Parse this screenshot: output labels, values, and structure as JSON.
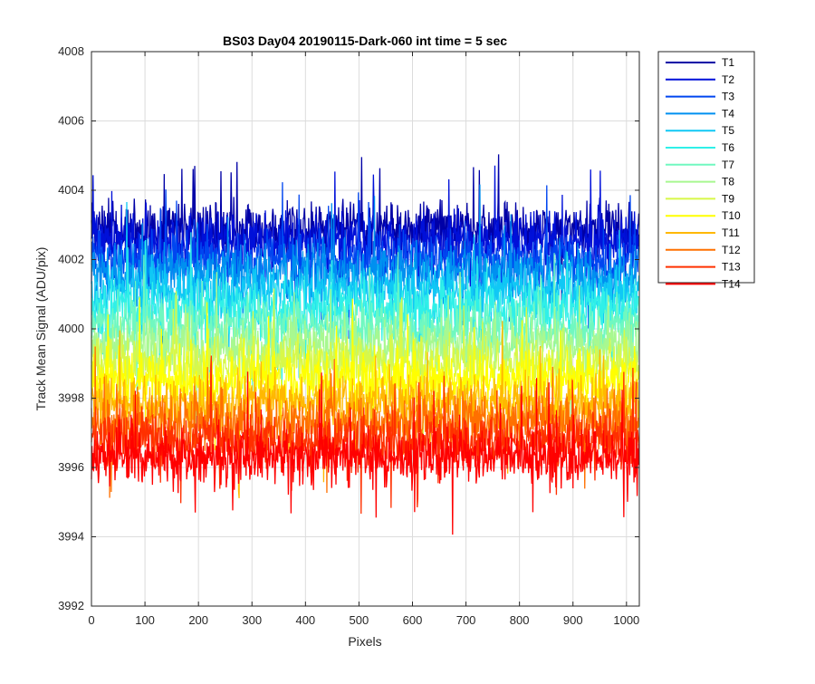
{
  "chart_data": {
    "type": "line",
    "title": "BS03 Day04 20190115-Dark-060 int time = 5 sec",
    "xlabel": "Pixels",
    "ylabel": "Track Mean Signal (ADU/pix)",
    "xlim": [
      0,
      1024
    ],
    "ylim": [
      3992,
      4008
    ],
    "xticks": [
      0,
      100,
      200,
      300,
      400,
      500,
      600,
      700,
      800,
      900,
      1000
    ],
    "yticks": [
      3992,
      3994,
      3996,
      3998,
      4000,
      4002,
      4004,
      4006,
      4008
    ],
    "grid": true,
    "legend_position": "outside top-right",
    "num_points": 1024,
    "series": [
      {
        "name": "T1",
        "color": "#0000a6",
        "mean": 4002.9,
        "spread": 0.75
      },
      {
        "name": "T2",
        "color": "#0010d9",
        "mean": 4002.5,
        "spread": 0.75
      },
      {
        "name": "T3",
        "color": "#0046f0",
        "mean": 4002.0,
        "spread": 0.75
      },
      {
        "name": "T4",
        "color": "#0090f0",
        "mean": 4001.6,
        "spread": 0.75
      },
      {
        "name": "T5",
        "color": "#10c8f5",
        "mean": 4001.1,
        "spread": 0.75
      },
      {
        "name": "T6",
        "color": "#30f0e8",
        "mean": 4000.6,
        "spread": 0.75
      },
      {
        "name": "T7",
        "color": "#70f8c0",
        "mean": 4000.1,
        "spread": 0.75
      },
      {
        "name": "T8",
        "color": "#a8f890",
        "mean": 3999.5,
        "spread": 0.75
      },
      {
        "name": "T9",
        "color": "#d8f848",
        "mean": 3999.0,
        "spread": 0.75
      },
      {
        "name": "T10",
        "color": "#ffff00",
        "mean": 3998.5,
        "spread": 0.75
      },
      {
        "name": "T11",
        "color": "#ffb800",
        "mean": 3997.9,
        "spread": 0.75
      },
      {
        "name": "T12",
        "color": "#ff7000",
        "mean": 3997.3,
        "spread": 0.75
      },
      {
        "name": "T13",
        "color": "#ff3000",
        "mean": 3996.8,
        "spread": 0.75
      },
      {
        "name": "T14",
        "color": "#ff0000",
        "mean": 3996.3,
        "spread": 0.75
      }
    ]
  }
}
